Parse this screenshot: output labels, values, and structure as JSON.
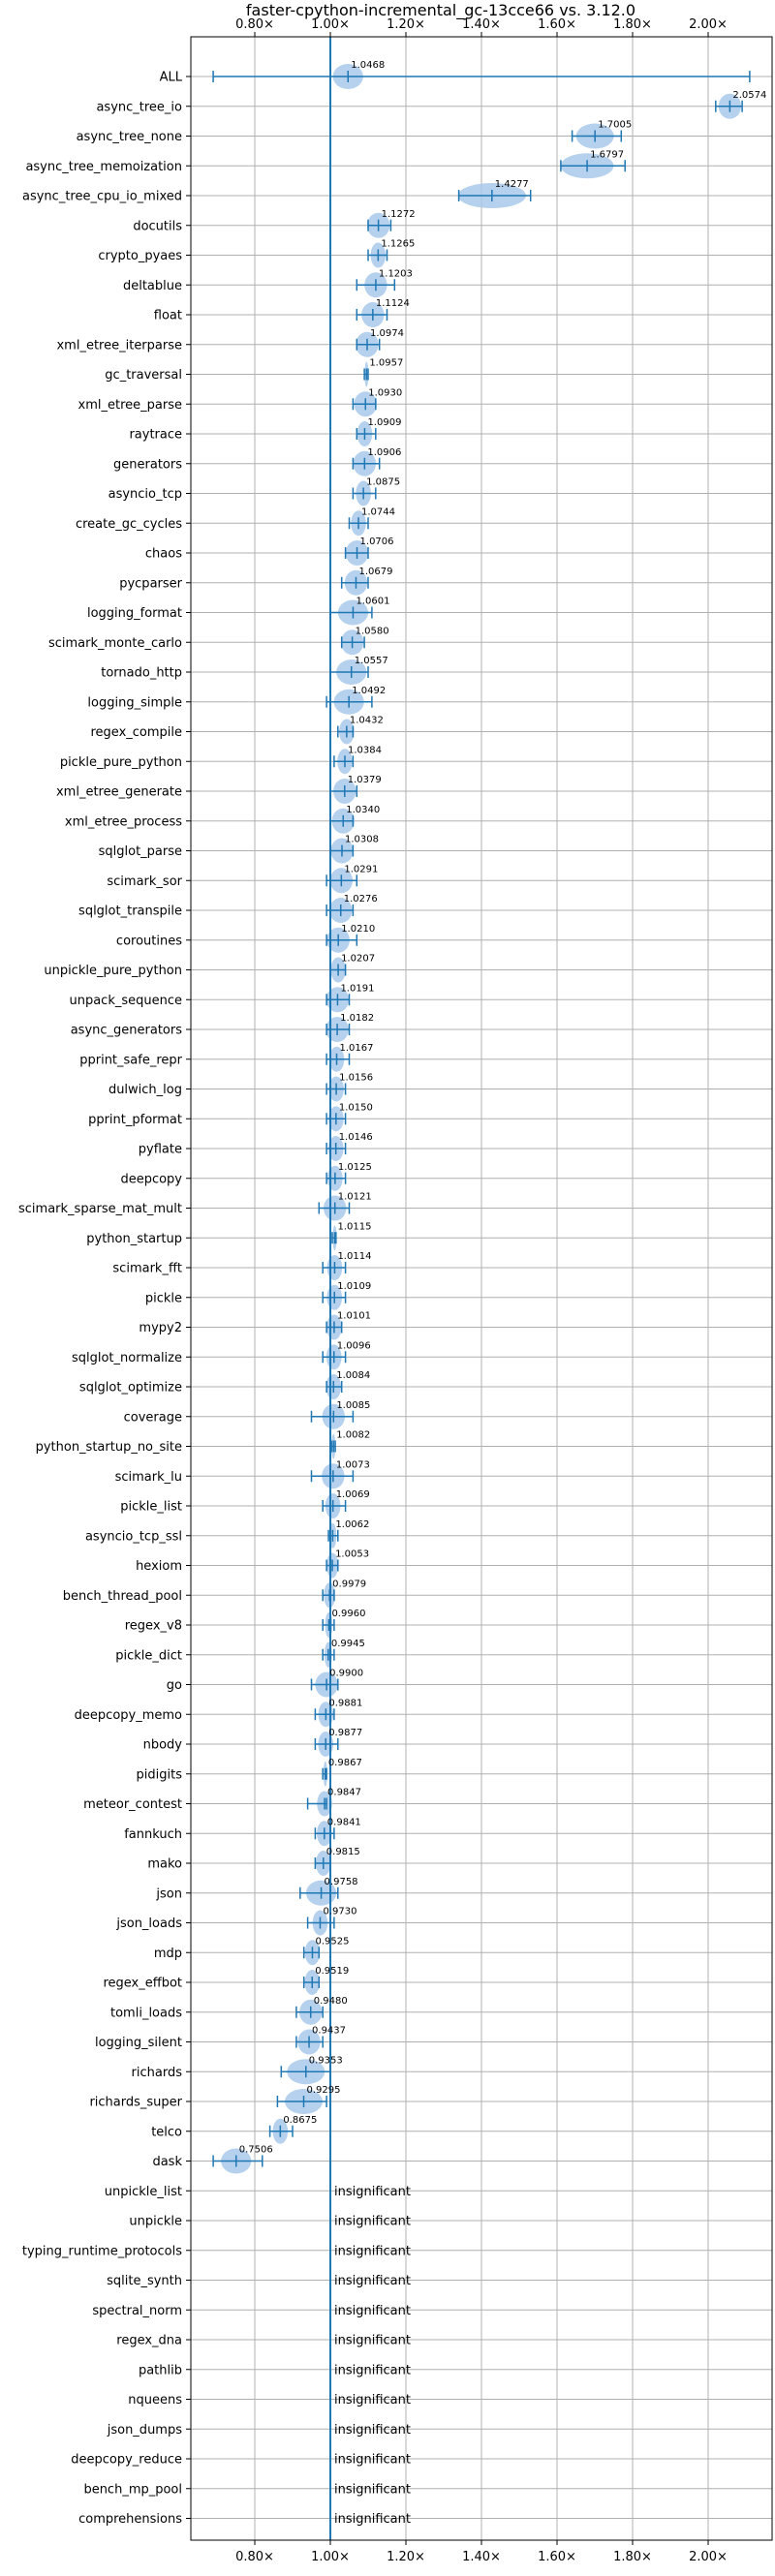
{
  "chart_data": {
    "type": "violin",
    "title": "faster-cpython-incremental_gc-13cce66 vs. 3.12.0",
    "x_ticks": [
      "0.80×",
      "1.00×",
      "1.20×",
      "1.40×",
      "1.60×",
      "1.80×",
      "2.00×"
    ],
    "x_tick_values": [
      0.8,
      1.0,
      1.2,
      1.4,
      1.6,
      1.8,
      2.0
    ],
    "xlim": [
      0.66,
      2.18
    ],
    "reference_line": 1.0,
    "grid": true,
    "colors": {
      "line": "#1f77b4",
      "violin": "#a9c9ea",
      "grid": "#b0b0b0"
    },
    "insignificant_label": "insignificant",
    "benchmarks": [
      {
        "name": "ALL",
        "value": 1.0468,
        "label": "1.0468",
        "lo": 0.69,
        "hi": 2.11,
        "half": 0.04
      },
      {
        "name": "async_tree_io",
        "value": 2.0574,
        "label": "2.0574",
        "lo": 2.02,
        "hi": 2.09,
        "half": 0.03
      },
      {
        "name": "async_tree_none",
        "value": 1.7005,
        "label": "1.7005",
        "lo": 1.64,
        "hi": 1.77,
        "half": 0.05
      },
      {
        "name": "async_tree_memoization",
        "value": 1.6797,
        "label": "1.6797",
        "lo": 1.61,
        "hi": 1.78,
        "half": 0.07
      },
      {
        "name": "async_tree_cpu_io_mixed",
        "value": 1.4277,
        "label": "1.4277",
        "lo": 1.34,
        "hi": 1.53,
        "half": 0.09
      },
      {
        "name": "docutils",
        "value": 1.1272,
        "label": "1.1272",
        "lo": 1.1,
        "hi": 1.16,
        "half": 0.03
      },
      {
        "name": "crypto_pyaes",
        "value": 1.1265,
        "label": "1.1265",
        "lo": 1.1,
        "hi": 1.15,
        "half": 0.02
      },
      {
        "name": "deltablue",
        "value": 1.1203,
        "label": "1.1203",
        "lo": 1.07,
        "hi": 1.17,
        "half": 0.03
      },
      {
        "name": "float",
        "value": 1.1124,
        "label": "1.1124",
        "lo": 1.07,
        "hi": 1.15,
        "half": 0.03
      },
      {
        "name": "xml_etree_iterparse",
        "value": 1.0974,
        "label": "1.0974",
        "lo": 1.07,
        "hi": 1.13,
        "half": 0.03
      },
      {
        "name": "gc_traversal",
        "value": 1.0957,
        "label": "1.0957",
        "lo": 1.09,
        "hi": 1.1,
        "half": 0.005
      },
      {
        "name": "xml_etree_parse",
        "value": 1.093,
        "label": "1.0930",
        "lo": 1.06,
        "hi": 1.12,
        "half": 0.03
      },
      {
        "name": "raytrace",
        "value": 1.0909,
        "label": "1.0909",
        "lo": 1.07,
        "hi": 1.12,
        "half": 0.02
      },
      {
        "name": "generators",
        "value": 1.0906,
        "label": "1.0906",
        "lo": 1.06,
        "hi": 1.13,
        "half": 0.03
      },
      {
        "name": "asyncio_tcp",
        "value": 1.0875,
        "label": "1.0875",
        "lo": 1.06,
        "hi": 1.12,
        "half": 0.02
      },
      {
        "name": "create_gc_cycles",
        "value": 1.0744,
        "label": "1.0744",
        "lo": 1.05,
        "hi": 1.1,
        "half": 0.02
      },
      {
        "name": "chaos",
        "value": 1.0706,
        "label": "1.0706",
        "lo": 1.04,
        "hi": 1.1,
        "half": 0.03
      },
      {
        "name": "pycparser",
        "value": 1.0679,
        "label": "1.0679",
        "lo": 1.03,
        "hi": 1.1,
        "half": 0.03
      },
      {
        "name": "logging_format",
        "value": 1.0601,
        "label": "1.0601",
        "lo": 1.0,
        "hi": 1.11,
        "half": 0.04
      },
      {
        "name": "scimark_monte_carlo",
        "value": 1.058,
        "label": "1.0580",
        "lo": 1.03,
        "hi": 1.09,
        "half": 0.03
      },
      {
        "name": "tornado_http",
        "value": 1.0557,
        "label": "1.0557",
        "lo": 1.0,
        "hi": 1.1,
        "half": 0.04
      },
      {
        "name": "logging_simple",
        "value": 1.0492,
        "label": "1.0492",
        "lo": 0.99,
        "hi": 1.11,
        "half": 0.04
      },
      {
        "name": "regex_compile",
        "value": 1.0432,
        "label": "1.0432",
        "lo": 1.02,
        "hi": 1.06,
        "half": 0.02
      },
      {
        "name": "pickle_pure_python",
        "value": 1.0384,
        "label": "1.0384",
        "lo": 1.01,
        "hi": 1.06,
        "half": 0.02
      },
      {
        "name": "xml_etree_generate",
        "value": 1.0379,
        "label": "1.0379",
        "lo": 1.0,
        "hi": 1.07,
        "half": 0.03
      },
      {
        "name": "xml_etree_process",
        "value": 1.034,
        "label": "1.0340",
        "lo": 1.0,
        "hi": 1.06,
        "half": 0.03
      },
      {
        "name": "sqlglot_parse",
        "value": 1.0308,
        "label": "1.0308",
        "lo": 1.0,
        "hi": 1.06,
        "half": 0.03
      },
      {
        "name": "scimark_sor",
        "value": 1.0291,
        "label": "1.0291",
        "lo": 0.99,
        "hi": 1.07,
        "half": 0.03
      },
      {
        "name": "sqlglot_transpile",
        "value": 1.0276,
        "label": "1.0276",
        "lo": 0.99,
        "hi": 1.06,
        "half": 0.03
      },
      {
        "name": "coroutines",
        "value": 1.021,
        "label": "1.0210",
        "lo": 0.99,
        "hi": 1.07,
        "half": 0.03
      },
      {
        "name": "unpickle_pure_python",
        "value": 1.0207,
        "label": "1.0207",
        "lo": 1.0,
        "hi": 1.04,
        "half": 0.02
      },
      {
        "name": "unpack_sequence",
        "value": 1.0191,
        "label": "1.0191",
        "lo": 0.99,
        "hi": 1.05,
        "half": 0.03
      },
      {
        "name": "async_generators",
        "value": 1.0182,
        "label": "1.0182",
        "lo": 0.99,
        "hi": 1.05,
        "half": 0.03
      },
      {
        "name": "pprint_safe_repr",
        "value": 1.0167,
        "label": "1.0167",
        "lo": 0.99,
        "hi": 1.05,
        "half": 0.02
      },
      {
        "name": "dulwich_log",
        "value": 1.0156,
        "label": "1.0156",
        "lo": 0.99,
        "hi": 1.04,
        "half": 0.02
      },
      {
        "name": "pprint_pformat",
        "value": 1.015,
        "label": "1.0150",
        "lo": 0.99,
        "hi": 1.04,
        "half": 0.02
      },
      {
        "name": "pyflate",
        "value": 1.0146,
        "label": "1.0146",
        "lo": 0.99,
        "hi": 1.04,
        "half": 0.02
      },
      {
        "name": "deepcopy",
        "value": 1.0125,
        "label": "1.0125",
        "lo": 0.99,
        "hi": 1.04,
        "half": 0.02
      },
      {
        "name": "scimark_sparse_mat_mult",
        "value": 1.0121,
        "label": "1.0121",
        "lo": 0.97,
        "hi": 1.05,
        "half": 0.03
      },
      {
        "name": "python_startup",
        "value": 1.0115,
        "label": "1.0115",
        "lo": 1.005,
        "hi": 1.015,
        "half": 0.005
      },
      {
        "name": "scimark_fft",
        "value": 1.0114,
        "label": "1.0114",
        "lo": 0.98,
        "hi": 1.04,
        "half": 0.02
      },
      {
        "name": "pickle",
        "value": 1.0109,
        "label": "1.0109",
        "lo": 0.98,
        "hi": 1.04,
        "half": 0.02
      },
      {
        "name": "mypy2",
        "value": 1.0101,
        "label": "1.0101",
        "lo": 0.99,
        "hi": 1.03,
        "half": 0.02
      },
      {
        "name": "sqlglot_normalize",
        "value": 1.0096,
        "label": "1.0096",
        "lo": 0.98,
        "hi": 1.04,
        "half": 0.02
      },
      {
        "name": "sqlglot_optimize",
        "value": 1.0084,
        "label": "1.0084",
        "lo": 0.99,
        "hi": 1.03,
        "half": 0.02
      },
      {
        "name": "coverage",
        "value": 1.0085,
        "label": "1.0085",
        "lo": 0.95,
        "hi": 1.06,
        "half": 0.03
      },
      {
        "name": "python_startup_no_site",
        "value": 1.0082,
        "label": "1.0082",
        "lo": 1.003,
        "hi": 1.013,
        "half": 0.005
      },
      {
        "name": "scimark_lu",
        "value": 1.0073,
        "label": "1.0073",
        "lo": 0.95,
        "hi": 1.06,
        "half": 0.03
      },
      {
        "name": "pickle_list",
        "value": 1.0069,
        "label": "1.0069",
        "lo": 0.98,
        "hi": 1.04,
        "half": 0.02
      },
      {
        "name": "asyncio_tcp_ssl",
        "value": 1.0062,
        "label": "1.0062",
        "lo": 0.995,
        "hi": 1.02,
        "half": 0.01
      },
      {
        "name": "hexiom",
        "value": 1.0053,
        "label": "1.0053",
        "lo": 0.99,
        "hi": 1.02,
        "half": 0.015
      },
      {
        "name": "bench_thread_pool",
        "value": 0.9979,
        "label": "0.9979",
        "lo": 0.98,
        "hi": 1.01,
        "half": 0.015
      },
      {
        "name": "regex_v8",
        "value": 0.996,
        "label": "0.9960",
        "lo": 0.98,
        "hi": 1.01,
        "half": 0.01
      },
      {
        "name": "pickle_dict",
        "value": 0.9945,
        "label": "0.9945",
        "lo": 0.98,
        "hi": 1.01,
        "half": 0.01
      },
      {
        "name": "go",
        "value": 0.99,
        "label": "0.9900",
        "lo": 0.95,
        "hi": 1.02,
        "half": 0.03
      },
      {
        "name": "deepcopy_memo",
        "value": 0.9881,
        "label": "0.9881",
        "lo": 0.96,
        "hi": 1.01,
        "half": 0.02
      },
      {
        "name": "nbody",
        "value": 0.9877,
        "label": "0.9877",
        "lo": 0.96,
        "hi": 1.02,
        "half": 0.02
      },
      {
        "name": "pidigits",
        "value": 0.9867,
        "label": "0.9867",
        "lo": 0.98,
        "hi": 0.99,
        "half": 0.005
      },
      {
        "name": "meteor_contest",
        "value": 0.9847,
        "label": "0.9847",
        "lo": 0.94,
        "hi": 0.99,
        "half": 0.02
      },
      {
        "name": "fannkuch",
        "value": 0.9841,
        "label": "0.9841",
        "lo": 0.96,
        "hi": 1.01,
        "half": 0.02
      },
      {
        "name": "mako",
        "value": 0.9815,
        "label": "0.9815",
        "lo": 0.96,
        "hi": 1.0,
        "half": 0.02
      },
      {
        "name": "json",
        "value": 0.9758,
        "label": "0.9758",
        "lo": 0.92,
        "hi": 1.02,
        "half": 0.04
      },
      {
        "name": "json_loads",
        "value": 0.973,
        "label": "0.9730",
        "lo": 0.94,
        "hi": 1.01,
        "half": 0.02
      },
      {
        "name": "mdp",
        "value": 0.9525,
        "label": "0.9525",
        "lo": 0.93,
        "hi": 0.97,
        "half": 0.02
      },
      {
        "name": "regex_effbot",
        "value": 0.9519,
        "label": "0.9519",
        "lo": 0.93,
        "hi": 0.97,
        "half": 0.02
      },
      {
        "name": "tomli_loads",
        "value": 0.948,
        "label": "0.9480",
        "lo": 0.91,
        "hi": 0.98,
        "half": 0.03
      },
      {
        "name": "logging_silent",
        "value": 0.9437,
        "label": "0.9437",
        "lo": 0.91,
        "hi": 0.98,
        "half": 0.03
      },
      {
        "name": "richards",
        "value": 0.9353,
        "label": "0.9353",
        "lo": 0.87,
        "hi": 1.0,
        "half": 0.05
      },
      {
        "name": "richards_super",
        "value": 0.9295,
        "label": "0.9295",
        "lo": 0.86,
        "hi": 0.99,
        "half": 0.05
      },
      {
        "name": "telco",
        "value": 0.8675,
        "label": "0.8675",
        "lo": 0.84,
        "hi": 0.9,
        "half": 0.02
      },
      {
        "name": "dask",
        "value": 0.7506,
        "label": "0.7506",
        "lo": 0.69,
        "hi": 0.82,
        "half": 0.04
      },
      {
        "name": "unpickle_list",
        "insignificant": true
      },
      {
        "name": "unpickle",
        "insignificant": true
      },
      {
        "name": "typing_runtime_protocols",
        "insignificant": true
      },
      {
        "name": "sqlite_synth",
        "insignificant": true
      },
      {
        "name": "spectral_norm",
        "insignificant": true
      },
      {
        "name": "regex_dna",
        "insignificant": true
      },
      {
        "name": "pathlib",
        "insignificant": true
      },
      {
        "name": "nqueens",
        "insignificant": true
      },
      {
        "name": "json_dumps",
        "insignificant": true
      },
      {
        "name": "deepcopy_reduce",
        "insignificant": true
      },
      {
        "name": "bench_mp_pool",
        "insignificant": true
      },
      {
        "name": "comprehensions",
        "insignificant": true
      }
    ]
  }
}
